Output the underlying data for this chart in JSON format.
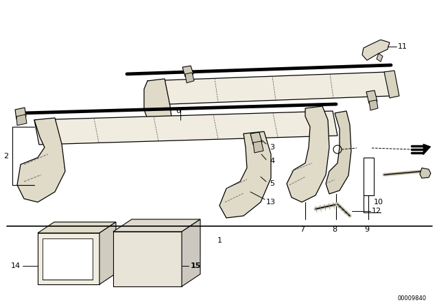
{
  "background_color": "#ffffff",
  "line_color": "#000000",
  "figure_width": 6.4,
  "figure_height": 4.48,
  "dpi": 100,
  "watermark": "00009840"
}
